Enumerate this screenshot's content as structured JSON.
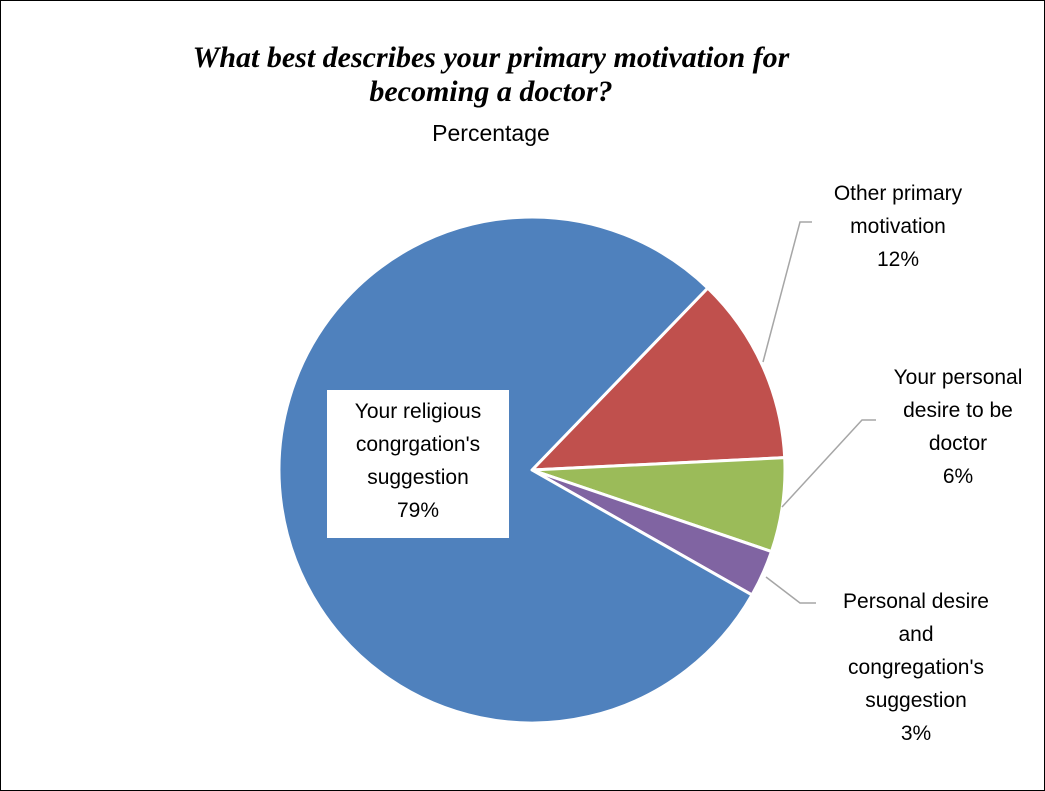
{
  "chart_data": {
    "type": "pie",
    "title": "What best describes your primary motivation for becoming a doctor?",
    "subtitle": "Percentage",
    "legend": "none",
    "slices": [
      {
        "label_lines": [
          "Other primary",
          "motivation"
        ],
        "value_label": "12%",
        "value": 12,
        "color": "#C0504D"
      },
      {
        "label_lines": [
          "Your personal",
          "desire to be",
          "doctor"
        ],
        "value_label": "6%",
        "value": 6,
        "color": "#9BBB59"
      },
      {
        "label_lines": [
          "Personal desire",
          "and",
          "congregation's",
          "suggestion"
        ],
        "value_label": "3%",
        "value": 3,
        "color": "#8064A2"
      },
      {
        "label_lines": [
          "Your religious",
          "congrgation's",
          "suggestion"
        ],
        "value_label": "79%",
        "value": 79,
        "color": "#4F81BD"
      }
    ]
  }
}
